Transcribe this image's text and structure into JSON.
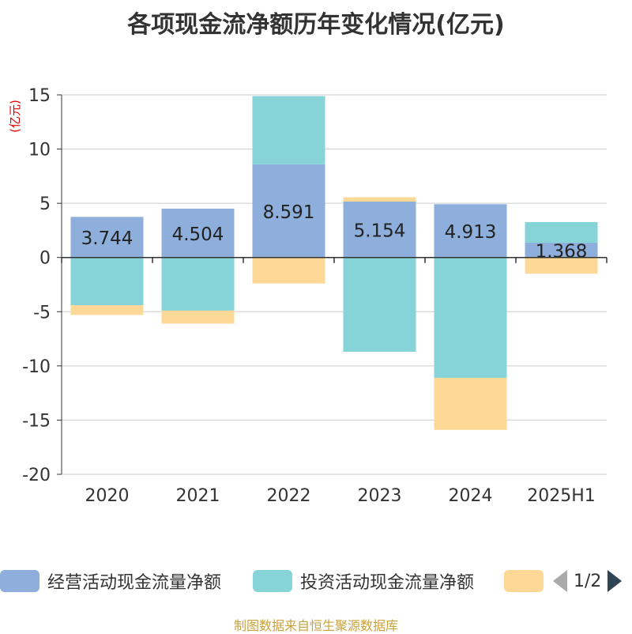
{
  "title": "各项现金流净额历年变化情况(亿元)",
  "source_note": "制图数据来自恒生聚源数据库",
  "legend": {
    "pager": "1/2"
  },
  "chart_data": {
    "type": "bar",
    "stacked": true,
    "title": "各项现金流净额历年变化情况(亿元)",
    "ylabel": "(亿元)",
    "xlabel": "",
    "ylim": [
      -20,
      15
    ],
    "yticks": [
      15,
      10,
      5,
      0,
      -5,
      -10,
      -15,
      -20
    ],
    "categories": [
      "2020",
      "2021",
      "2022",
      "2023",
      "2024",
      "2025H1"
    ],
    "grid": true,
    "legend_position": "bottom",
    "series": [
      {
        "name": "经营活动现金流量净额",
        "color": "#8eaedb",
        "values": [
          3.744,
          4.504,
          8.591,
          5.154,
          4.913,
          1.368
        ],
        "show_labels": true
      },
      {
        "name": "投资活动现金流量净额",
        "color": "#86d4d8",
        "values": [
          -4.4,
          -4.9,
          6.3,
          -8.7,
          -11.1,
          1.9
        ],
        "show_labels": false
      },
      {
        "name": "",
        "color": "#fdd897",
        "values": [
          -0.9,
          -1.2,
          -2.4,
          0.4,
          -4.8,
          -1.5
        ],
        "show_labels": false
      }
    ]
  }
}
